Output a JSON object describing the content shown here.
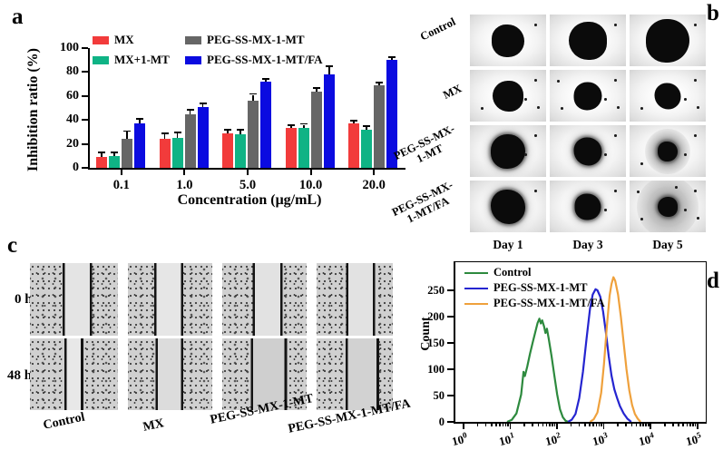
{
  "panels": {
    "a": {
      "letter": "a"
    },
    "b": {
      "letter": "b",
      "row_labels": [
        [
          "Control"
        ],
        [
          "MX"
        ],
        [
          "PEG-SS-MX-",
          "1-MT"
        ],
        [
          "PEG-SS-MX-",
          "1-MT/FA"
        ]
      ],
      "col_labels": [
        "Day 1",
        "Day 3",
        "Day 5"
      ],
      "cells": [
        [
          {
            "d": 36,
            "debris": 1
          },
          {
            "d": 42,
            "debris": 1
          },
          {
            "d": 48,
            "debris": 1
          }
        ],
        [
          {
            "d": 34,
            "debris": 4
          },
          {
            "d": 31,
            "debris": 5
          },
          {
            "d": 29,
            "debris": 4
          }
        ],
        [
          {
            "d": 38,
            "fuzzy": true,
            "debris": 2
          },
          {
            "d": 31,
            "fuzzy": true,
            "debris": 2
          },
          {
            "d": 22,
            "fuzzy": true,
            "halo": 50,
            "debris": 3
          }
        ],
        [
          {
            "d": 38,
            "fuzzy": true,
            "debris": 1
          },
          {
            "d": 29,
            "fuzzy": true,
            "debris": 2
          },
          {
            "d": 22,
            "fuzzy": true,
            "halo": 68,
            "debris": 6
          }
        ]
      ]
    },
    "c": {
      "letter": "c",
      "row_labels": [
        "0 h",
        "48 h"
      ],
      "col_labels": [
        "Control",
        "MX",
        "PEG-SS-MX-1-MT",
        "PEG-SS-MX-1-MT/FA"
      ],
      "cells": [
        [
          {
            "p1": 38,
            "p2": 69,
            "band": "#e4e4e4"
          },
          {
            "p1": 32,
            "p2": 64,
            "band": "#e6e6e6"
          },
          {
            "p1": 37,
            "p2": 70,
            "band": "#e2e2e2"
          },
          {
            "p1": 40,
            "p2": 75,
            "band": "#e2e2e2"
          }
        ],
        [
          {
            "p1": 40,
            "p2": 59,
            "band": "#e8e8e8"
          },
          {
            "p1": 34,
            "p2": 64,
            "band": "#dcdcdc"
          },
          {
            "p1": 35,
            "p2": 75,
            "band": "#cfcfcf"
          },
          {
            "p1": 39,
            "p2": 80,
            "band": "#d2d2d2"
          }
        ]
      ]
    },
    "d": {
      "letter": "d"
    }
  },
  "chart_data": [
    {
      "id": "panel_a",
      "type": "bar",
      "title": "",
      "xlabel": "Concentration (μg/mL)",
      "ylabel": "Inhibition ratio (%)",
      "ylim": [
        0,
        100
      ],
      "yticks": [
        0,
        20,
        40,
        60,
        80,
        100
      ],
      "categories": [
        "0.1",
        "1.0",
        "5.0",
        "10.0",
        "20.0"
      ],
      "series": [
        {
          "name": "MX",
          "color": "#F23B3B",
          "values": [
            9,
            24,
            29,
            33,
            37
          ],
          "errors": [
            3,
            4,
            2,
            2,
            2
          ]
        },
        {
          "name": "MX+1-MT",
          "color": "#0FB385",
          "values": [
            10,
            25,
            28,
            33,
            32
          ],
          "errors": [
            2,
            4,
            3,
            3,
            2
          ]
        },
        {
          "name": "PEG-SS-MX-1-MT",
          "color": "#666666",
          "values": [
            24,
            45,
            56,
            64,
            69
          ],
          "errors": [
            6,
            3,
            5,
            2,
            1.5
          ]
        },
        {
          "name": "PEG-SS-MX-1-MT/FA",
          "color": "#0B0BE0",
          "values": [
            37,
            51,
            72,
            78,
            90
          ],
          "errors": [
            3,
            2,
            1.5,
            6,
            2
          ]
        }
      ],
      "legend_position": "top",
      "grid": false
    },
    {
      "id": "panel_d",
      "type": "line",
      "title": "",
      "ylabel": "Count",
      "ylim": [
        0,
        300
      ],
      "yticks": [
        0,
        50,
        100,
        150,
        200,
        250
      ],
      "x_axis": {
        "scale": "log10",
        "tick_exponents": [
          0,
          1,
          2,
          3,
          4,
          5
        ]
      },
      "legend_position": "top-left-inside",
      "grid": false,
      "series": [
        {
          "name": "Control",
          "color": "#2D8A3E",
          "points": [
            [
              0.95,
              0
            ],
            [
              1.05,
              4
            ],
            [
              1.15,
              16
            ],
            [
              1.25,
              52
            ],
            [
              1.3,
              95
            ],
            [
              1.33,
              87
            ],
            [
              1.38,
              105
            ],
            [
              1.44,
              130
            ],
            [
              1.5,
              152
            ],
            [
              1.55,
              170
            ],
            [
              1.6,
              188
            ],
            [
              1.64,
              196
            ],
            [
              1.67,
              187
            ],
            [
              1.7,
              193
            ],
            [
              1.74,
              181
            ],
            [
              1.77,
              169
            ],
            [
              1.8,
              177
            ],
            [
              1.84,
              158
            ],
            [
              1.9,
              125
            ],
            [
              1.96,
              88
            ],
            [
              2.02,
              52
            ],
            [
              2.08,
              24
            ],
            [
              2.14,
              9
            ],
            [
              2.2,
              2
            ],
            [
              2.26,
              0
            ]
          ]
        },
        {
          "name": "PEG-SS-MX-1-MT",
          "color": "#2525D0",
          "points": [
            [
              2.25,
              0
            ],
            [
              2.33,
              4
            ],
            [
              2.41,
              15
            ],
            [
              2.49,
              45
            ],
            [
              2.57,
              95
            ],
            [
              2.65,
              160
            ],
            [
              2.72,
              215
            ],
            [
              2.78,
              242
            ],
            [
              2.84,
              252
            ],
            [
              2.88,
              250
            ],
            [
              2.94,
              238
            ],
            [
              3.0,
              210
            ],
            [
              3.06,
              170
            ],
            [
              3.12,
              125
            ],
            [
              3.18,
              88
            ],
            [
              3.24,
              62
            ],
            [
              3.3,
              45
            ],
            [
              3.36,
              30
            ],
            [
              3.44,
              16
            ],
            [
              3.52,
              6
            ],
            [
              3.6,
              0
            ]
          ]
        },
        {
          "name": "PEG-SS-MX-1-MT/FA",
          "color": "#EFA13C",
          "points": [
            [
              2.72,
              0
            ],
            [
              2.8,
              5
            ],
            [
              2.88,
              18
            ],
            [
              2.96,
              55
            ],
            [
              3.02,
              110
            ],
            [
              3.08,
              180
            ],
            [
              3.14,
              240
            ],
            [
              3.18,
              262
            ],
            [
              3.22,
              275
            ],
            [
              3.26,
              268
            ],
            [
              3.32,
              242
            ],
            [
              3.38,
              200
            ],
            [
              3.44,
              150
            ],
            [
              3.5,
              100
            ],
            [
              3.56,
              60
            ],
            [
              3.62,
              32
            ],
            [
              3.68,
              15
            ],
            [
              3.74,
              6
            ],
            [
              3.8,
              0
            ]
          ]
        }
      ]
    }
  ]
}
